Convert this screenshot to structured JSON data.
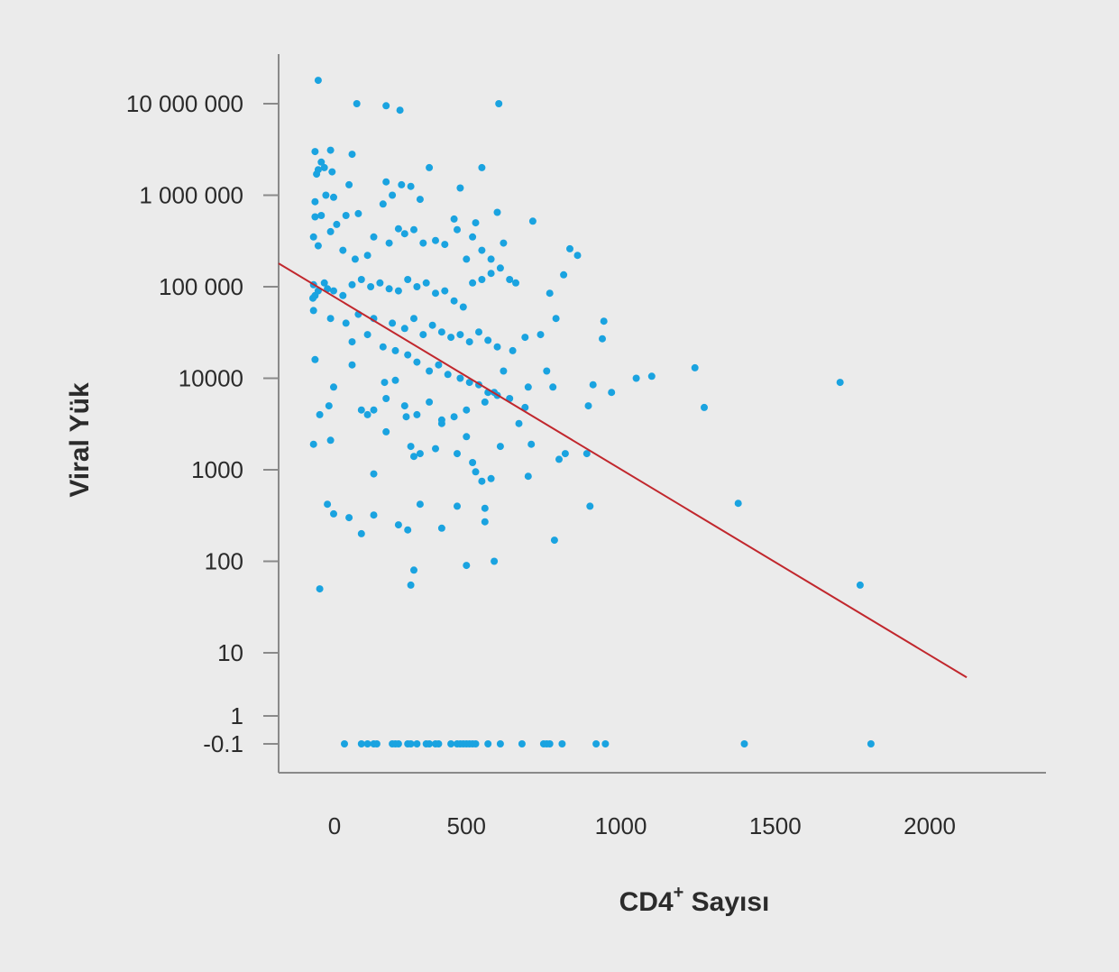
{
  "chart_data": {
    "type": "scatter",
    "xlabel": "CD4",
    "xlabel_sup": "+",
    "xlabel_suffix": " Sayısı",
    "ylabel": "Viral Yük",
    "x_ticks": [
      "0",
      "500",
      "1000",
      "1500",
      "2000"
    ],
    "x_tick_values": [
      0,
      500,
      1000,
      1500,
      2000
    ],
    "xlim": [
      -110,
      2380
    ],
    "y_scale": "log (with -0.1 floor row)",
    "y_ticks": [
      {
        "label": "10 000 000",
        "value": 10000000
      },
      {
        "label": "1 000 000",
        "value": 1000000
      },
      {
        "label": "100 000",
        "value": 100000
      },
      {
        "label": "10000",
        "value": 10000
      },
      {
        "label": "1000",
        "value": 1000
      },
      {
        "label": "100",
        "value": 100
      },
      {
        "label": "10",
        "value": 10
      },
      {
        "label": "1",
        "value": 1
      },
      {
        "label": "-0.1",
        "value": -0.1
      }
    ],
    "trend_line": {
      "from": {
        "x": -110,
        "y": 180000
      },
      "to": {
        "x": 2120,
        "y": 4
      }
    },
    "colors": {
      "points": "#1aa3e0",
      "trend": "#c1272d",
      "axis": "#8a8a8a",
      "background": "#ebebeb"
    },
    "points": [
      [
        20,
        18000000
      ],
      [
        145,
        10000000
      ],
      [
        240,
        9500000
      ],
      [
        285,
        8500000
      ],
      [
        605,
        10000000
      ],
      [
        10,
        3000000
      ],
      [
        30,
        2300000
      ],
      [
        60,
        3100000
      ],
      [
        130,
        2800000
      ],
      [
        20,
        1900000
      ],
      [
        40,
        2000000
      ],
      [
        65,
        1800000
      ],
      [
        15,
        1700000
      ],
      [
        380,
        2000000
      ],
      [
        550,
        2000000
      ],
      [
        10,
        850000
      ],
      [
        45,
        1000000
      ],
      [
        70,
        950000
      ],
      [
        120,
        1300000
      ],
      [
        240,
        1400000
      ],
      [
        260,
        1000000
      ],
      [
        290,
        1300000
      ],
      [
        320,
        1250000
      ],
      [
        350,
        900000
      ],
      [
        230,
        800000
      ],
      [
        480,
        1200000
      ],
      [
        600,
        650000
      ],
      [
        715,
        520000
      ],
      [
        10,
        580000
      ],
      [
        30,
        600000
      ],
      [
        80,
        480000
      ],
      [
        110,
        600000
      ],
      [
        150,
        630000
      ],
      [
        5,
        350000
      ],
      [
        20,
        280000
      ],
      [
        60,
        400000
      ],
      [
        100,
        250000
      ],
      [
        140,
        200000
      ],
      [
        180,
        220000
      ],
      [
        200,
        350000
      ],
      [
        250,
        300000
      ],
      [
        280,
        430000
      ],
      [
        300,
        380000
      ],
      [
        330,
        420000
      ],
      [
        360,
        300000
      ],
      [
        400,
        320000
      ],
      [
        430,
        290000
      ],
      [
        470,
        420000
      ],
      [
        500,
        200000
      ],
      [
        520,
        350000
      ],
      [
        550,
        250000
      ],
      [
        580,
        200000
      ],
      [
        620,
        300000
      ],
      [
        835,
        260000
      ],
      [
        860,
        220000
      ],
      [
        530,
        500000
      ],
      [
        460,
        550000
      ],
      [
        5,
        105000
      ],
      [
        20,
        90000
      ],
      [
        40,
        110000
      ],
      [
        70,
        90000
      ],
      [
        100,
        80000
      ],
      [
        130,
        105000
      ],
      [
        160,
        120000
      ],
      [
        190,
        100000
      ],
      [
        220,
        110000
      ],
      [
        250,
        95000
      ],
      [
        280,
        90000
      ],
      [
        310,
        120000
      ],
      [
        340,
        100000
      ],
      [
        370,
        110000
      ],
      [
        400,
        85000
      ],
      [
        430,
        90000
      ],
      [
        460,
        70000
      ],
      [
        490,
        60000
      ],
      [
        520,
        110000
      ],
      [
        550,
        120000
      ],
      [
        580,
        140000
      ],
      [
        610,
        160000
      ],
      [
        640,
        120000
      ],
      [
        660,
        110000
      ],
      [
        770,
        85000
      ],
      [
        815,
        135000
      ],
      [
        3,
        75000
      ],
      [
        10,
        80000
      ],
      [
        50,
        95000
      ],
      [
        150,
        50000
      ],
      [
        200,
        45000
      ],
      [
        260,
        40000
      ],
      [
        300,
        35000
      ],
      [
        330,
        45000
      ],
      [
        360,
        30000
      ],
      [
        390,
        38000
      ],
      [
        420,
        32000
      ],
      [
        450,
        28000
      ],
      [
        480,
        30000
      ],
      [
        510,
        25000
      ],
      [
        540,
        32000
      ],
      [
        570,
        26000
      ],
      [
        600,
        22000
      ],
      [
        650,
        20000
      ],
      [
        690,
        28000
      ],
      [
        740,
        30000
      ],
      [
        790,
        45000
      ],
      [
        945,
        42000
      ],
      [
        940,
        27000
      ],
      [
        5,
        55000
      ],
      [
        60,
        45000
      ],
      [
        110,
        40000
      ],
      [
        130,
        25000
      ],
      [
        180,
        30000
      ],
      [
        230,
        22000
      ],
      [
        270,
        20000
      ],
      [
        310,
        18000
      ],
      [
        340,
        15000
      ],
      [
        380,
        12000
      ],
      [
        410,
        14000
      ],
      [
        440,
        11000
      ],
      [
        480,
        10000
      ],
      [
        510,
        9000
      ],
      [
        540,
        8500
      ],
      [
        570,
        7000
      ],
      [
        600,
        6500
      ],
      [
        640,
        6000
      ],
      [
        690,
        4800
      ],
      [
        700,
        8000
      ],
      [
        760,
        12000
      ],
      [
        780,
        8000
      ],
      [
        910,
        8500
      ],
      [
        970,
        7000
      ],
      [
        1050,
        10000
      ],
      [
        1100,
        10500
      ],
      [
        1240,
        13000
      ],
      [
        1270,
        4800
      ],
      [
        1710,
        9000
      ],
      [
        10,
        16000
      ],
      [
        70,
        8000
      ],
      [
        130,
        14000
      ],
      [
        160,
        4500
      ],
      [
        200,
        4500
      ],
      [
        240,
        6000
      ],
      [
        300,
        5000
      ],
      [
        340,
        4000
      ],
      [
        380,
        5500
      ],
      [
        420,
        3500
      ],
      [
        460,
        3800
      ],
      [
        500,
        4500
      ],
      [
        560,
        5500
      ],
      [
        590,
        7000
      ],
      [
        620,
        12000
      ],
      [
        895,
        5000
      ],
      [
        25,
        4000
      ],
      [
        55,
        5000
      ],
      [
        180,
        4000
      ],
      [
        235,
        9000
      ],
      [
        270,
        9500
      ],
      [
        305,
        3800
      ],
      [
        5,
        1900
      ],
      [
        60,
        2100
      ],
      [
        200,
        900
      ],
      [
        240,
        2600
      ],
      [
        320,
        1800
      ],
      [
        330,
        1400
      ],
      [
        350,
        1500
      ],
      [
        400,
        1700
      ],
      [
        420,
        3200
      ],
      [
        470,
        1500
      ],
      [
        500,
        2300
      ],
      [
        520,
        1200
      ],
      [
        530,
        950
      ],
      [
        550,
        750
      ],
      [
        580,
        800
      ],
      [
        610,
        1800
      ],
      [
        670,
        3200
      ],
      [
        710,
        1900
      ],
      [
        700,
        850
      ],
      [
        800,
        1300
      ],
      [
        820,
        1500
      ],
      [
        890,
        1500
      ],
      [
        50,
        420
      ],
      [
        70,
        330
      ],
      [
        120,
        300
      ],
      [
        160,
        200
      ],
      [
        200,
        320
      ],
      [
        280,
        250
      ],
      [
        310,
        220
      ],
      [
        350,
        420
      ],
      [
        420,
        230
      ],
      [
        470,
        400
      ],
      [
        500,
        90
      ],
      [
        560,
        380
      ],
      [
        560,
        270
      ],
      [
        590,
        100
      ],
      [
        785,
        170
      ],
      [
        900,
        400
      ],
      [
        1380,
        430
      ],
      [
        330,
        80
      ],
      [
        320,
        55
      ],
      [
        25,
        50
      ],
      [
        1775,
        55
      ],
      [
        105,
        -0.1
      ],
      [
        160,
        -0.1
      ],
      [
        180,
        -0.1
      ],
      [
        200,
        -0.1
      ],
      [
        210,
        -0.1
      ],
      [
        260,
        -0.1
      ],
      [
        270,
        -0.1
      ],
      [
        280,
        -0.1
      ],
      [
        310,
        -0.1
      ],
      [
        320,
        -0.1
      ],
      [
        340,
        -0.1
      ],
      [
        370,
        -0.1
      ],
      [
        380,
        -0.1
      ],
      [
        400,
        -0.1
      ],
      [
        410,
        -0.1
      ],
      [
        450,
        -0.1
      ],
      [
        470,
        -0.1
      ],
      [
        480,
        -0.1
      ],
      [
        490,
        -0.1
      ],
      [
        500,
        -0.1
      ],
      [
        510,
        -0.1
      ],
      [
        520,
        -0.1
      ],
      [
        530,
        -0.1
      ],
      [
        570,
        -0.1
      ],
      [
        610,
        -0.1
      ],
      [
        680,
        -0.1
      ],
      [
        750,
        -0.1
      ],
      [
        760,
        -0.1
      ],
      [
        770,
        -0.1
      ],
      [
        810,
        -0.1
      ],
      [
        920,
        -0.1
      ],
      [
        950,
        -0.1
      ],
      [
        1400,
        -0.1
      ],
      [
        1810,
        -0.1
      ]
    ]
  }
}
